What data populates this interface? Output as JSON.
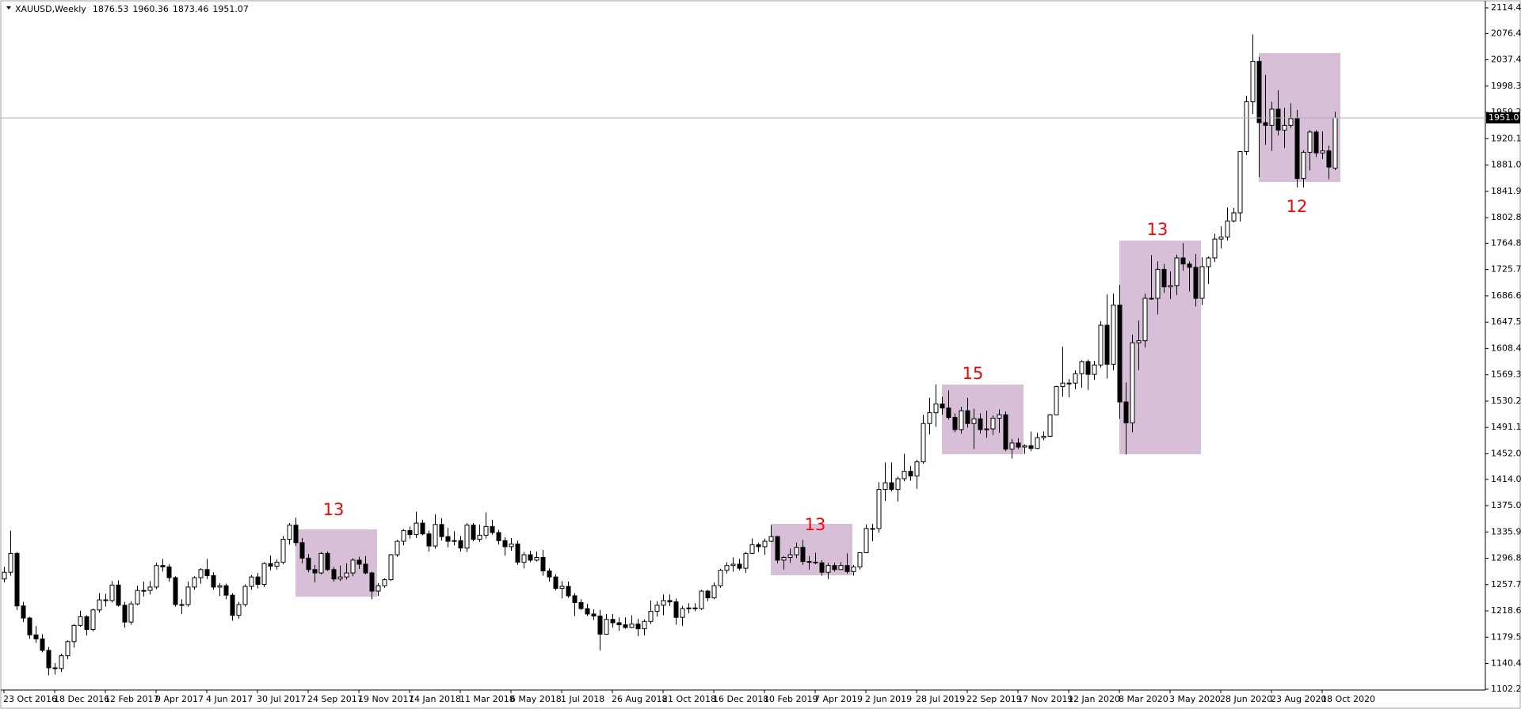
{
  "chart_data": {
    "type": "candlestick",
    "title": "XAUUSD,Weekly",
    "categories": [
      "23 Oct 2016",
      null,
      null,
      null,
      null,
      null,
      null,
      null,
      "18 Dec 2016",
      null,
      null,
      null,
      null,
      null,
      null,
      null,
      "12 Feb 2017",
      null,
      null,
      null,
      null,
      null,
      null,
      null,
      "9 Apr 2017",
      null,
      null,
      null,
      null,
      null,
      null,
      null,
      "4 Jun 2017",
      null,
      null,
      null,
      null,
      null,
      null,
      null,
      "30 Jul 2017",
      null,
      null,
      null,
      null,
      null,
      null,
      null,
      "24 Sep 2017",
      null,
      null,
      null,
      null,
      null,
      null,
      null,
      "19 Nov 2017",
      null,
      null,
      null,
      null,
      null,
      null,
      null,
      "14 Jan 2018",
      null,
      null,
      null,
      null,
      null,
      null,
      null,
      "11 Mar 2018",
      null,
      null,
      null,
      null,
      null,
      null,
      null,
      "6 May 2018",
      null,
      null,
      null,
      null,
      null,
      null,
      null,
      "1 Jul 2018",
      null,
      null,
      null,
      null,
      null,
      null,
      null,
      "26 Aug 2018",
      null,
      null,
      null,
      null,
      null,
      null,
      null,
      "21 Oct 2018",
      null,
      null,
      null,
      null,
      null,
      null,
      null,
      "16 Dec 2018",
      null,
      null,
      null,
      null,
      null,
      null,
      null,
      "10 Feb 2019",
      null,
      null,
      null,
      null,
      null,
      null,
      null,
      "7 Apr 2019",
      null,
      null,
      null,
      null,
      null,
      null,
      null,
      "2 Jun 2019",
      null,
      null,
      null,
      null,
      null,
      null,
      null,
      "28 Jul 2019",
      null,
      null,
      null,
      null,
      null,
      null,
      null,
      "22 Sep 2019",
      null,
      null,
      null,
      null,
      null,
      null,
      null,
      "17 Nov 2019",
      null,
      null,
      null,
      null,
      null,
      null,
      null,
      "12 Jan 2020",
      null,
      null,
      null,
      null,
      null,
      null,
      null,
      "8 Mar 2020",
      null,
      null,
      null,
      null,
      null,
      null,
      null,
      "3 May 2020",
      null,
      null,
      null,
      null,
      null,
      null,
      null,
      "28 Jun 2020",
      null,
      null,
      null,
      null,
      null,
      null,
      null,
      "23 Aug 2020",
      null,
      null,
      null,
      null,
      null,
      null,
      null,
      "18 Oct 2020",
      null,
      null
    ],
    "open": [
      1266,
      1276,
      1304,
      1226,
      1208,
      1183,
      1177,
      1160,
      1134,
      1133,
      1152,
      1173,
      1197,
      1210,
      1191,
      1220,
      1235,
      1234,
      1257,
      1227,
      1202,
      1229,
      1249,
      1249,
      1254,
      1286,
      1284,
      1268,
      1228,
      1228,
      1254,
      1268,
      1280,
      1271,
      1254,
      1256,
      1242,
      1212,
      1228,
      1255,
      1269,
      1258,
      1289,
      1285,
      1291,
      1325,
      1346,
      1320,
      1297,
      1280,
      1275,
      1304,
      1280,
      1266,
      1269,
      1275,
      1294,
      1288,
      1275,
      1248,
      1256,
      1265,
      1302,
      1322,
      1338,
      1332,
      1349,
      1333,
      1315,
      1347,
      1329,
      1322,
      1323,
      1312,
      1346,
      1325,
      1331,
      1344,
      1335,
      1323,
      1314,
      1318,
      1291,
      1302,
      1294,
      1298,
      1278,
      1269,
      1252,
      1255,
      1241,
      1231,
      1222,
      1214,
      1211,
      1184,
      1206,
      1201,
      1198,
      1194,
      1199,
      1192,
      1203,
      1218,
      1227,
      1234,
      1232,
      1209,
      1222,
      1223,
      1222,
      1248,
      1238,
      1256,
      1279,
      1286,
      1288,
      1282,
      1304,
      1317,
      1314,
      1322,
      1329,
      1294,
      1298,
      1302,
      1313,
      1292,
      1291,
      1290,
      1276,
      1286,
      1280,
      1286,
      1277,
      1284,
      1305,
      1341,
      1341,
      1399,
      1409,
      1399,
      1415,
      1426,
      1419,
      1440,
      1497,
      1513,
      1526,
      1520,
      1506,
      1488,
      1516,
      1497,
      1504,
      1488,
      1489,
      1505,
      1510,
      1459,
      1468,
      1462,
      1464,
      1460,
      1476,
      1478,
      1510,
      1552,
      1557,
      1557,
      1571,
      1589,
      1570,
      1584,
      1643,
      1585,
      1673,
      1529,
      1498,
      1617,
      1620,
      1683,
      1683,
      1726,
      1700,
      1702,
      1743,
      1734,
      1729,
      1683,
      1730,
      1743,
      1771,
      1774,
      1798,
      1810,
      1901,
      1975,
      2035,
      1944,
      1940,
      1964,
      1933,
      1940,
      1950,
      1861,
      1900,
      1930,
      1899,
      1902,
      1876.53
    ],
    "high": [
      1284,
      1338,
      1306,
      1232,
      1210,
      1196,
      1184,
      1165,
      1141,
      1155,
      1175,
      1199,
      1219,
      1212,
      1222,
      1245,
      1244,
      1263,
      1264,
      1232,
      1233,
      1256,
      1262,
      1263,
      1290,
      1296,
      1288,
      1270,
      1236,
      1262,
      1270,
      1282,
      1296,
      1276,
      1260,
      1259,
      1245,
      1232,
      1258,
      1272,
      1275,
      1291,
      1301,
      1295,
      1330,
      1349,
      1357,
      1327,
      1303,
      1287,
      1306,
      1307,
      1284,
      1286,
      1289,
      1297,
      1299,
      1300,
      1277,
      1260,
      1267,
      1303,
      1324,
      1340,
      1344,
      1366,
      1354,
      1338,
      1362,
      1356,
      1342,
      1337,
      1330,
      1349,
      1349,
      1347,
      1365,
      1354,
      1339,
      1328,
      1327,
      1323,
      1306,
      1308,
      1307,
      1309,
      1282,
      1273,
      1263,
      1262,
      1245,
      1236,
      1229,
      1221,
      1220,
      1214,
      1214,
      1209,
      1209,
      1212,
      1207,
      1206,
      1234,
      1233,
      1243,
      1243,
      1237,
      1226,
      1230,
      1230,
      1250,
      1250,
      1261,
      1281,
      1291,
      1298,
      1296,
      1306,
      1326,
      1320,
      1326,
      1346,
      1330,
      1300,
      1311,
      1320,
      1324,
      1300,
      1305,
      1294,
      1290,
      1290,
      1291,
      1304,
      1287,
      1306,
      1347,
      1348,
      1410,
      1439,
      1439,
      1418,
      1452,
      1434,
      1443,
      1510,
      1535,
      1555,
      1537,
      1546,
      1512,
      1522,
      1535,
      1519,
      1512,
      1516,
      1509,
      1518,
      1515,
      1474,
      1475,
      1466,
      1485,
      1483,
      1485,
      1511,
      1553,
      1611,
      1563,
      1576,
      1591,
      1592,
      1590,
      1649,
      1689,
      1690,
      1703,
      1558,
      1629,
      1650,
      1690,
      1747,
      1738,
      1734,
      1723,
      1748,
      1765,
      1738,
      1749,
      1744,
      1745,
      1779,
      1790,
      1818,
      1817,
      1902,
      1984,
      2075,
      2042,
      2015,
      1975,
      1992,
      1966,
      1973,
      1963,
      1903,
      1933,
      1933,
      1931,
      1910,
      1960.36
    ],
    "low": [
      1261,
      1271,
      1220,
      1202,
      1177,
      1171,
      1157,
      1123,
      1124,
      1128,
      1147,
      1164,
      1195,
      1182,
      1188,
      1216,
      1225,
      1231,
      1225,
      1194,
      1198,
      1227,
      1240,
      1243,
      1251,
      1277,
      1262,
      1225,
      1214,
      1225,
      1250,
      1259,
      1266,
      1250,
      1241,
      1236,
      1204,
      1207,
      1225,
      1250,
      1252,
      1254,
      1279,
      1280,
      1288,
      1317,
      1315,
      1289,
      1276,
      1261,
      1273,
      1278,
      1262,
      1263,
      1265,
      1270,
      1281,
      1273,
      1236,
      1241,
      1253,
      1263,
      1299,
      1316,
      1326,
      1327,
      1331,
      1307,
      1311,
      1323,
      1313,
      1316,
      1307,
      1306,
      1322,
      1321,
      1326,
      1332,
      1317,
      1301,
      1308,
      1287,
      1282,
      1291,
      1292,
      1271,
      1262,
      1249,
      1237,
      1238,
      1211,
      1220,
      1211,
      1205,
      1160,
      1183,
      1194,
      1189,
      1192,
      1193,
      1181,
      1182,
      1199,
      1210,
      1212,
      1226,
      1198,
      1196,
      1215,
      1218,
      1220,
      1233,
      1236,
      1253,
      1274,
      1277,
      1279,
      1275,
      1303,
      1306,
      1302,
      1321,
      1289,
      1280,
      1290,
      1297,
      1287,
      1280,
      1288,
      1271,
      1266,
      1277,
      1280,
      1274,
      1271,
      1280,
      1305,
      1322,
      1335,
      1382,
      1396,
      1381,
      1411,
      1412,
      1400,
      1437,
      1481,
      1492,
      1510,
      1503,
      1484,
      1482,
      1491,
      1459,
      1482,
      1476,
      1480,
      1483,
      1456,
      1445,
      1459,
      1452,
      1456,
      1459,
      1472,
      1477,
      1510,
      1537,
      1536,
      1548,
      1550,
      1547,
      1562,
      1580,
      1564,
      1576,
      1504,
      1451,
      1484,
      1576,
      1610,
      1681,
      1659,
      1691,
      1682,
      1688,
      1724,
      1693,
      1671,
      1673,
      1704,
      1737,
      1757,
      1769,
      1796,
      1797,
      1896,
      1957,
      1863,
      1911,
      1902,
      1925,
      1906,
      1936,
      1848,
      1848,
      1873,
      1893,
      1890,
      1860,
      1873.46
    ],
    "close": [
      1276,
      1304,
      1226,
      1208,
      1183,
      1177,
      1160,
      1134,
      1133,
      1152,
      1173,
      1197,
      1210,
      1191,
      1220,
      1235,
      1234,
      1257,
      1227,
      1202,
      1229,
      1249,
      1249,
      1254,
      1286,
      1284,
      1268,
      1228,
      1228,
      1254,
      1268,
      1280,
      1271,
      1254,
      1256,
      1242,
      1212,
      1228,
      1255,
      1269,
      1258,
      1289,
      1285,
      1291,
      1325,
      1346,
      1320,
      1297,
      1280,
      1275,
      1304,
      1280,
      1266,
      1269,
      1275,
      1294,
      1288,
      1275,
      1248,
      1256,
      1265,
      1302,
      1322,
      1338,
      1332,
      1349,
      1333,
      1315,
      1347,
      1329,
      1322,
      1323,
      1312,
      1346,
      1325,
      1331,
      1344,
      1335,
      1323,
      1314,
      1318,
      1291,
      1302,
      1294,
      1298,
      1278,
      1269,
      1252,
      1255,
      1241,
      1231,
      1222,
      1214,
      1211,
      1184,
      1206,
      1201,
      1198,
      1194,
      1199,
      1192,
      1203,
      1218,
      1227,
      1234,
      1232,
      1209,
      1222,
      1223,
      1222,
      1248,
      1238,
      1256,
      1279,
      1286,
      1288,
      1282,
      1304,
      1317,
      1314,
      1322,
      1329,
      1294,
      1298,
      1302,
      1313,
      1292,
      1291,
      1290,
      1276,
      1286,
      1280,
      1286,
      1277,
      1284,
      1305,
      1341,
      1341,
      1399,
      1409,
      1399,
      1415,
      1426,
      1419,
      1440,
      1497,
      1513,
      1526,
      1520,
      1506,
      1488,
      1516,
      1497,
      1504,
      1488,
      1489,
      1505,
      1510,
      1459,
      1468,
      1462,
      1464,
      1460,
      1476,
      1478,
      1510,
      1552,
      1557,
      1557,
      1571,
      1589,
      1570,
      1584,
      1643,
      1585,
      1673,
      1529,
      1498,
      1617,
      1620,
      1683,
      1683,
      1726,
      1700,
      1702,
      1743,
      1734,
      1729,
      1683,
      1730,
      1743,
      1771,
      1774,
      1798,
      1810,
      1901,
      1975,
      2035,
      1944,
      1940,
      1964,
      1933,
      1940,
      1950,
      1861,
      1900,
      1930,
      1899,
      1902,
      1878,
      1951.07
    ],
    "ylim": [
      1102.25,
      2114.45
    ],
    "yticks": [
      1102.25,
      1140.45,
      {
        "value": 1179.5,
        "label": "1179.50"
      },
      {
        "value": 1218.6,
        "label": "1218.60"
      },
      {
        "value": 1257.7,
        "label": "1257.70"
      },
      {
        "value": 1296.8,
        "label": "1296.80"
      },
      {
        "value": 1335.9,
        "label": "1335.90"
      },
      {
        "value": 1375,
        "label": "1375.00"
      },
      1414.05,
      1452.05,
      1491.15,
      1530.25,
      1569.35,
      1608.45,
      1647.55,
      1686.65,
      1725.75,
      1764.85,
      {
        "value": 1802.8,
        "label": "1802.80"
      },
      {
        "value": 1841.9,
        "label": "1841.90"
      },
      {
        "value": 1881,
        "label": "1881.00"
      },
      {
        "value": 1920.1,
        "label": "1920.10"
      },
      {
        "value": 1959.2,
        "label": "1959.20"
      },
      {
        "value": 1998.3,
        "label": "1998.30"
      },
      {
        "value": 2037.4,
        "label": "2037.40"
      },
      {
        "value": 2076.4,
        "label": "2076.40"
      },
      2114.45
    ],
    "up_color": "#ffffff",
    "down_color": "#000000",
    "box_color": "#d8bfd8",
    "annotations": [
      {
        "label": "13"
      },
      {
        "label": "13"
      },
      {
        "label": "15"
      },
      {
        "label": "13"
      },
      {
        "label": "12"
      }
    ]
  }
}
